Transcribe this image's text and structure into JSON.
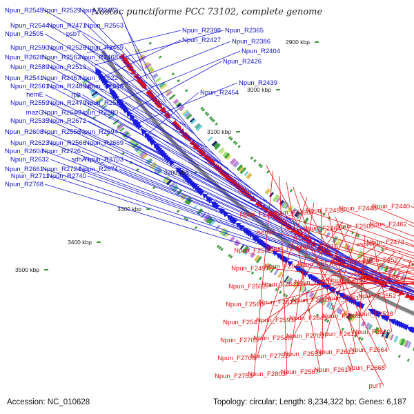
{
  "title": "Nostoc punctiforme PCC 73102, complete genome",
  "accession": "Accession: NC_010628",
  "summary": "Topology: circular; Length: 8,234,322 bp; Genes: 6,187",
  "colors": {
    "reverse": "#1a1ae0",
    "forward": "#e81010",
    "backbone": "#808080",
    "tick": "#3a9a3a"
  },
  "position_labels": [
    "2900 kbp",
    "3000 kbp",
    "3100 kbp",
    "3200 kbp",
    "3300 kbp",
    "3400 kbp",
    "3500 kbp"
  ],
  "reverse_genes": [
    "Npun_R2545",
    "Npun_R2529",
    "Npun_R2472",
    "Npun_R2544",
    "Npun_R2471",
    "Npun_R2563",
    "Npun_R2505",
    "psbT",
    "Npun_R2590",
    "Npun_R2526",
    "Npun_R2469",
    "Npun_R2628",
    "Npun_R2562",
    "Npun_R2468",
    "Npun_R2589",
    "Npun_R2513",
    "Npun_R2541",
    "Npun_R2467",
    "Npun_R2622",
    "Npun_R2561",
    "Npun_R2485",
    "Npun_R2618",
    "hemE",
    "rph",
    "Npun_R2559",
    "Npun_R2479",
    "Npun_R2509",
    "mazG",
    "Npun_R2646",
    "Npun_R2580",
    "Npun_R2535",
    "Npun_R2672",
    "Npun_R2608",
    "Npun_R2556",
    "Npun_R2694",
    "Npun_R2623",
    "Npun_R2566",
    "Npun_R2669",
    "Npun_R2604",
    "Npun_R2726",
    "Npun_R2632",
    "sdhA",
    "Npun_R2703",
    "Npun_R2661",
    "Npun_R2724",
    "Npun_R2674",
    "Npun_R2711",
    "Npun_R2740",
    "Npun_R2768",
    "Npun_R2398",
    "Npun_R2365",
    "Npun_R2427",
    "Npun_R2386",
    "Npun_R2404",
    "Npun_R2426",
    "Npun_R2439",
    "Npun_R2454"
  ],
  "forward_genes": [
    "Npun_F2440",
    "Npun_F2448",
    "Npun_F2455",
    "Npun_F2460",
    "Npun_F2488",
    "Npun_F2462",
    "Npun_F2500",
    "Npun_F2464",
    "dcd",
    "hemH",
    "Npun_F2473",
    "aspA",
    "Npun_F2516",
    "Npun_F2480",
    "Npun_F2565",
    "Npun_F2527",
    "Npun_F2489",
    "Npun_F2576",
    "Npun_F2540",
    "Npun_F2497",
    "Npun_F2588",
    "Npun_F2543",
    "Npun_F2507",
    "Npun_F2641",
    "Npun_F2592",
    "Npun_F2552",
    "Npun_F2517",
    "Npun_F2663",
    "Npun_F2613",
    "Npun_F2560",
    "Npun_F2528",
    "Npun_F2686",
    "Npun_F2645",
    "Npun_F2593",
    "Npun_F2547",
    "Npun_F2660",
    "Npun_F2611",
    "Npun_F2702",
    "Npun_F2548",
    "Npun_F2705",
    "Npun_F2664",
    "Npun_F2612",
    "Npun_F2553",
    "Npun_F2752",
    "Npun_F2706",
    "Npun_F2668",
    "Npun_F2614",
    "Npun_F2567",
    "Npun_F2803",
    "Npun_F2753",
    "purT"
  ]
}
